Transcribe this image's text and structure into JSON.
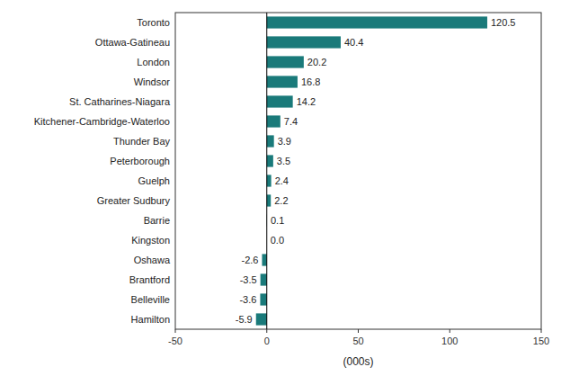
{
  "chart_data": {
    "type": "bar",
    "orientation": "horizontal",
    "categories": [
      "Toronto",
      "Ottawa-Gatineau",
      "London",
      "Windsor",
      "St. Catharines-Niagara",
      "Kitchener-Cambridge-Waterloo",
      "Thunder Bay",
      "Peterborough",
      "Guelph",
      "Greater Sudbury",
      "Barrie",
      "Kingston",
      "Oshawa",
      "Brantford",
      "Belleville",
      "Hamilton"
    ],
    "values": [
      120.5,
      40.4,
      20.2,
      16.8,
      14.2,
      7.4,
      3.9,
      3.5,
      2.4,
      2.2,
      0.1,
      0.0,
      -2.6,
      -3.5,
      -3.6,
      -5.9
    ],
    "value_labels": [
      "120.5",
      "40.4",
      "20.2",
      "16.8",
      "14.2",
      "7.4",
      "3.9",
      "3.5",
      "2.4",
      "2.2",
      "0.1",
      "0.0",
      "-2.6",
      "-3.5",
      "-3.6",
      "-5.9"
    ],
    "color": "#1a7a7a",
    "xlabel": "(000s)",
    "xlim": [
      -50,
      150
    ],
    "xticks": [
      -50,
      0,
      50,
      100,
      150
    ],
    "data_labels": true,
    "grid": false
  }
}
